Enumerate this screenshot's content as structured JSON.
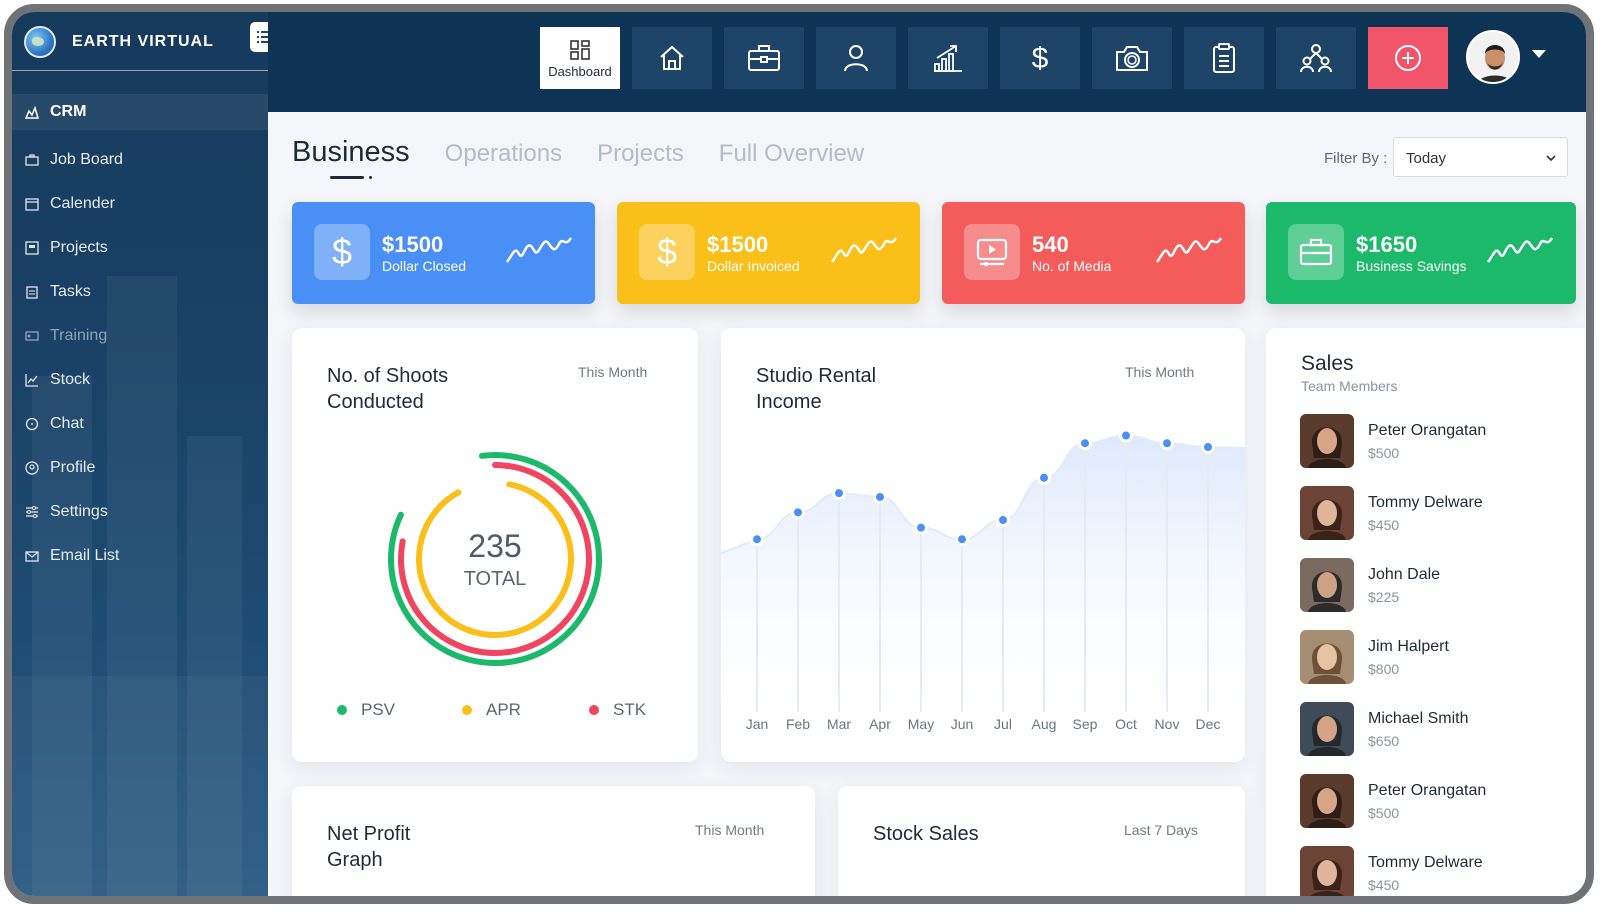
{
  "brand": {
    "name": "EARTH VIRTUAL"
  },
  "sidebar": {
    "items": [
      {
        "label": "CRM",
        "icon": "crm-icon"
      },
      {
        "label": "Job Board",
        "icon": "briefcase-icon"
      },
      {
        "label": "Calender",
        "icon": "calendar-icon"
      },
      {
        "label": "Projects",
        "icon": "projects-icon"
      },
      {
        "label": "Tasks",
        "icon": "clipboard-icon"
      },
      {
        "label": "Training",
        "icon": "training-icon"
      },
      {
        "label": "Stock",
        "icon": "line-chart-icon"
      },
      {
        "label": "Chat",
        "icon": "chat-icon"
      },
      {
        "label": "Profile",
        "icon": "profile-icon"
      },
      {
        "label": "Settings",
        "icon": "settings-icon"
      },
      {
        "label": "Email List",
        "icon": "email-icon"
      }
    ]
  },
  "topbar": {
    "dashboard_label": "Dashboard",
    "buttons": [
      "home-icon",
      "briefcase-icon",
      "user-icon",
      "chart-up-icon",
      "dollar-icon",
      "camera-icon",
      "clipboard-icon",
      "team-icon",
      "plus-circle-icon"
    ]
  },
  "tabs": [
    "Business",
    "Operations",
    "Projects",
    "Full Overview"
  ],
  "filter": {
    "label": "Filter By :",
    "value": "Today"
  },
  "stats": [
    {
      "value": "$1500",
      "label": "Dollar Closed",
      "color": "#4a8ff5",
      "icon": "dollar-icon"
    },
    {
      "value": "$1500",
      "label": "Dollar Invoiced",
      "color": "#fbbf1a",
      "icon": "dollar-icon"
    },
    {
      "value": "540",
      "label": "No. of Media",
      "color": "#f45b5b",
      "icon": "media-icon"
    },
    {
      "value": "$1650",
      "label": "Business Savings",
      "color": "#1cb96b",
      "icon": "briefcase-icon"
    }
  ],
  "shoots": {
    "title_line1": "No. of Shoots",
    "title_line2": "Conducted",
    "period": "This Month",
    "total_value": "235",
    "total_label": "TOTAL",
    "legend": [
      {
        "label": "PSV",
        "color": "#1cb96b"
      },
      {
        "label": "APR",
        "color": "#fbbf1a"
      },
      {
        "label": "STK",
        "color": "#f0455e"
      }
    ],
    "rings": [
      {
        "name": "PSV",
        "fraction": 0.84,
        "color": "#1cb96b"
      },
      {
        "name": "STK",
        "fraction": 0.78,
        "color": "#f0455e"
      },
      {
        "name": "APR",
        "fraction": 0.89,
        "color": "#fbbf1a"
      }
    ]
  },
  "rental": {
    "title_line1": "Studio Rental",
    "title_line2": "Income",
    "period": "This Month"
  },
  "chart_data": {
    "type": "area",
    "title": "Studio Rental Income",
    "categories": [
      "Jan",
      "Feb",
      "Mar",
      "Apr",
      "May",
      "Jun",
      "Jul",
      "Aug",
      "Sep",
      "Oct",
      "Nov",
      "Dec"
    ],
    "values": [
      45,
      52,
      57,
      56,
      48,
      45,
      50,
      61,
      70,
      72,
      70,
      69
    ],
    "ylim": [
      0,
      100
    ],
    "xlabel": "",
    "ylabel": ""
  },
  "sales": {
    "title": "Sales",
    "subtitle": "Team Members",
    "members": [
      {
        "name": "Peter Orangatan",
        "amount": "$500"
      },
      {
        "name": "Tommy Delware",
        "amount": "$450"
      },
      {
        "name": "John Dale",
        "amount": "$225"
      },
      {
        "name": "Jim Halpert",
        "amount": "$800"
      },
      {
        "name": "Michael Smith",
        "amount": "$650"
      },
      {
        "name": "Peter Orangatan",
        "amount": "$500"
      },
      {
        "name": "Tommy Delware",
        "amount": "$450"
      }
    ]
  },
  "net_profit": {
    "title_line1": "Net Profit",
    "title_line2": "Graph",
    "period": "This Month"
  },
  "stock_sales": {
    "title": "Stock Sales",
    "period": "Last 7 Days"
  }
}
